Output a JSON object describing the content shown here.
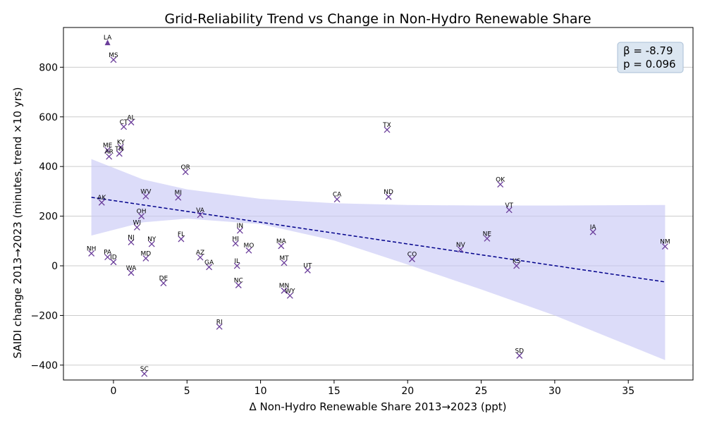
{
  "chart_data": {
    "type": "scatter",
    "title": "Grid-Reliability Trend vs Change in Non-Hydro Renewable Share",
    "xlabel": "Δ Non-Hydro Renewable Share 2013→2023 (ppt)",
    "ylabel": "SAIDI change 2013→2023 (minutes, trend ×10 yrs)",
    "xlim": [
      -3.4,
      39.4
    ],
    "ylim": [
      -460,
      960
    ],
    "xticks": [
      0,
      5,
      10,
      15,
      20,
      25,
      30,
      35
    ],
    "yticks": [
      -400,
      -200,
      0,
      200,
      400,
      600,
      800
    ],
    "grid": "horizontal",
    "marker_color": "#6a3d9a",
    "fit_line_color": "#00008b",
    "band_color": "#c7c7f5",
    "stats": {
      "beta": "β = -8.79",
      "p": "p = 0.096"
    },
    "stats_placement": "top-right",
    "fit_line": {
      "x": [
        -1.5,
        37.5
      ],
      "y": [
        276,
        -65
      ]
    },
    "confidence_band": {
      "x": [
        -1.5,
        2,
        5,
        10,
        15,
        20,
        25,
        30,
        37.5
      ],
      "upper": [
        430,
        348,
        308,
        270,
        252,
        245,
        243,
        243,
        245
      ],
      "lower": [
        122,
        175,
        190,
        168,
        102,
        5,
        -95,
        -200,
        -380
      ]
    },
    "points": [
      {
        "label": "LA",
        "x": -0.4,
        "y": 900,
        "marker": "triangle"
      },
      {
        "label": "MS",
        "x": 0.0,
        "y": 830
      },
      {
        "label": "AL",
        "x": 1.2,
        "y": 578
      },
      {
        "label": "CT",
        "x": 0.7,
        "y": 560
      },
      {
        "label": "TX",
        "x": 18.6,
        "y": 548
      },
      {
        "label": "ME",
        "x": -0.4,
        "y": 466
      },
      {
        "label": "KY",
        "x": 0.5,
        "y": 478
      },
      {
        "label": "TN",
        "x": 0.4,
        "y": 452
      },
      {
        "label": "AR",
        "x": -0.3,
        "y": 440
      },
      {
        "label": "OR",
        "x": 4.9,
        "y": 378
      },
      {
        "label": "OK",
        "x": 26.3,
        "y": 328
      },
      {
        "label": "WV",
        "x": 2.2,
        "y": 280
      },
      {
        "label": "MI",
        "x": 4.4,
        "y": 275
      },
      {
        "label": "ND",
        "x": 18.7,
        "y": 278
      },
      {
        "label": "CA",
        "x": 15.2,
        "y": 268
      },
      {
        "label": "AK",
        "x": -0.8,
        "y": 255
      },
      {
        "label": "VT",
        "x": 26.9,
        "y": 225
      },
      {
        "label": "VA",
        "x": 5.9,
        "y": 205
      },
      {
        "label": "OH",
        "x": 1.9,
        "y": 200
      },
      {
        "label": "WI",
        "x": 1.6,
        "y": 155
      },
      {
        "label": "IN",
        "x": 8.6,
        "y": 142
      },
      {
        "label": "IA",
        "x": 32.6,
        "y": 136
      },
      {
        "label": "NE",
        "x": 25.4,
        "y": 110
      },
      {
        "label": "FL",
        "x": 4.6,
        "y": 108
      },
      {
        "label": "NJ",
        "x": 1.2,
        "y": 95
      },
      {
        "label": "HI",
        "x": 8.3,
        "y": 90
      },
      {
        "label": "NY",
        "x": 2.6,
        "y": 88
      },
      {
        "label": "MA",
        "x": 11.4,
        "y": 80
      },
      {
        "label": "NM",
        "x": 37.5,
        "y": 78
      },
      {
        "label": "MO",
        "x": 9.2,
        "y": 62
      },
      {
        "label": "NV",
        "x": 23.6,
        "y": 66
      },
      {
        "label": "NH",
        "x": -1.5,
        "y": 50
      },
      {
        "label": "PA",
        "x": -0.4,
        "y": 35
      },
      {
        "label": "AZ",
        "x": 5.9,
        "y": 34
      },
      {
        "label": "MD",
        "x": 2.2,
        "y": 30
      },
      {
        "label": "CO",
        "x": 20.3,
        "y": 27
      },
      {
        "label": "ID",
        "x": 0.0,
        "y": 15
      },
      {
        "label": "MT",
        "x": 11.6,
        "y": 12
      },
      {
        "label": "IL",
        "x": 8.4,
        "y": 0
      },
      {
        "label": "KS",
        "x": 27.4,
        "y": 0
      },
      {
        "label": "GA",
        "x": 6.5,
        "y": -5
      },
      {
        "label": "UT",
        "x": 13.2,
        "y": -18
      },
      {
        "label": "WA",
        "x": 1.2,
        "y": -28
      },
      {
        "label": "DE",
        "x": 3.4,
        "y": -70
      },
      {
        "label": "NC",
        "x": 8.5,
        "y": -78
      },
      {
        "label": "MN",
        "x": 11.6,
        "y": -100
      },
      {
        "label": "WY",
        "x": 12.0,
        "y": -120
      },
      {
        "label": "RI",
        "x": 7.2,
        "y": -245
      },
      {
        "label": "SD",
        "x": 27.6,
        "y": -362
      },
      {
        "label": "SC",
        "x": 2.1,
        "y": -435
      }
    ]
  }
}
